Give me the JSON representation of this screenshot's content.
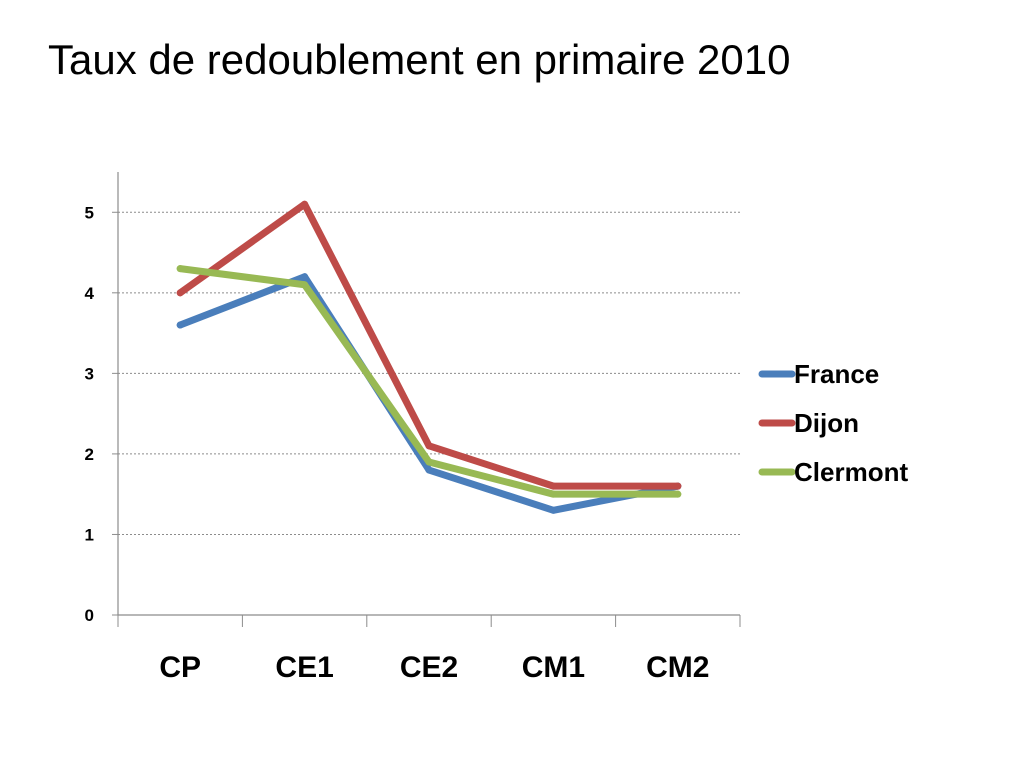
{
  "slide": {
    "title": "Taux de redoublement en primaire 2010"
  },
  "chart_data": {
    "type": "line",
    "title": "",
    "xlabel": "",
    "ylabel": "",
    "categories": [
      "CP",
      "CE1",
      "CE2",
      "CM1",
      "CM2"
    ],
    "ylim": [
      0,
      5.5
    ],
    "yticks": [
      0,
      1,
      2,
      3,
      4,
      5
    ],
    "grid": true,
    "legend": "right",
    "series": [
      {
        "name": "France",
        "color": "#4a7ebb",
        "values": [
          3.6,
          4.2,
          1.8,
          1.3,
          1.6
        ]
      },
      {
        "name": "Dijon",
        "color": "#be4b48",
        "values": [
          4.0,
          5.1,
          2.1,
          1.6,
          1.6
        ]
      },
      {
        "name": "Clermont",
        "color": "#98b954",
        "values": [
          4.3,
          4.1,
          1.9,
          1.5,
          1.5
        ]
      }
    ]
  }
}
